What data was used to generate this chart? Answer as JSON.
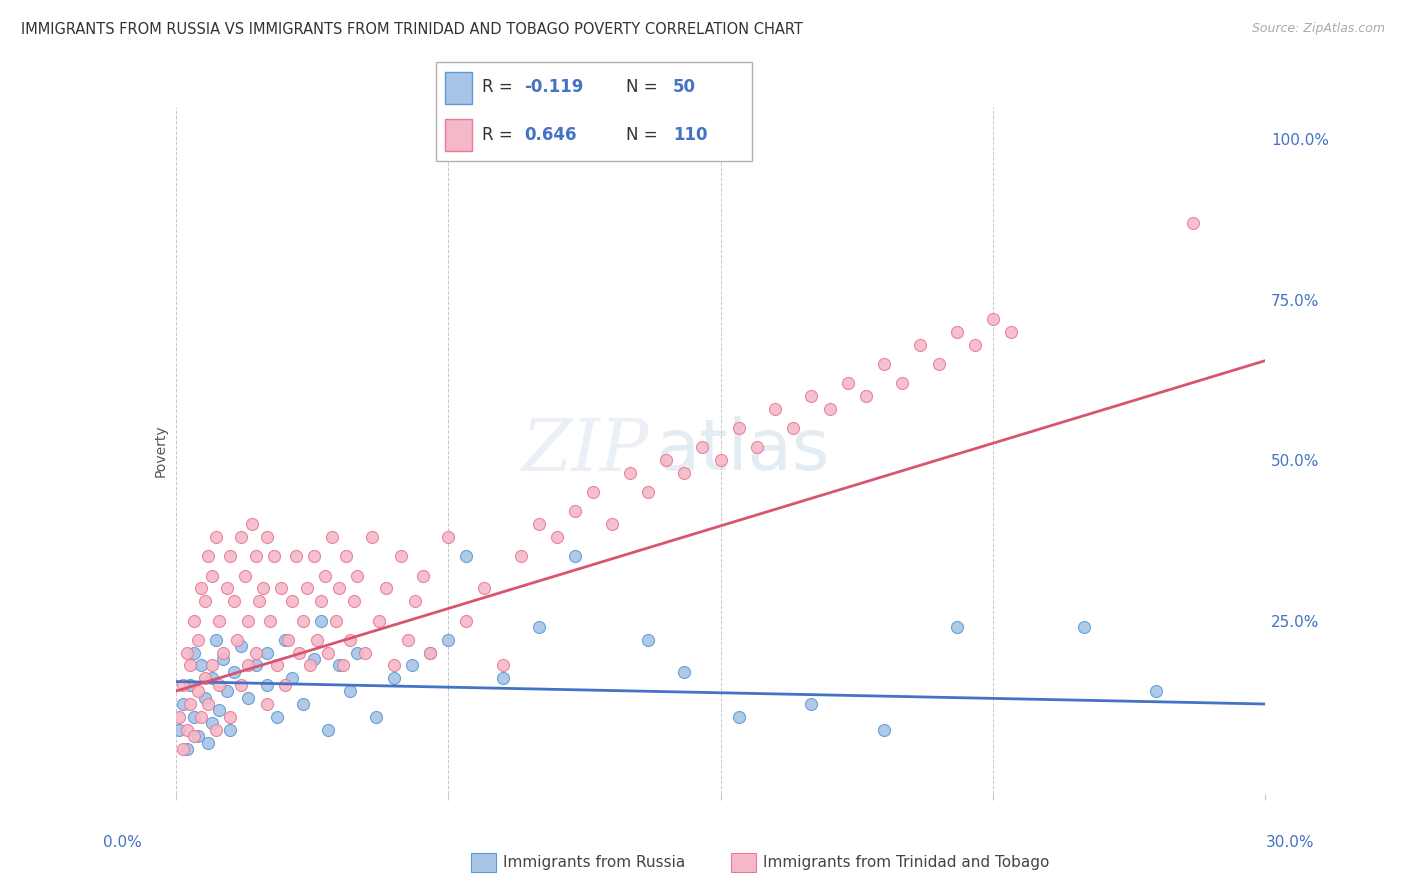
{
  "title": "IMMIGRANTS FROM RUSSIA VS IMMIGRANTS FROM TRINIDAD AND TOBAGO POVERTY CORRELATION CHART",
  "source": "Source: ZipAtlas.com",
  "ylabel": "Poverty",
  "ytick_labels": [
    "100.0%",
    "75.0%",
    "50.0%",
    "25.0%"
  ],
  "ytick_values": [
    1.0,
    0.75,
    0.5,
    0.25
  ],
  "legend_label1": "Immigrants from Russia",
  "legend_label2": "Immigrants from Trinidad and Tobago",
  "color_russia_fill": "#a8c4e6",
  "color_russia_edge": "#5b9bd5",
  "color_tt_fill": "#f4b8c8",
  "color_tt_edge": "#e87a96",
  "color_russia_line": "#4472c4",
  "color_tt_line": "#d9546e",
  "xmin": 0.0,
  "xmax": 0.3,
  "ymin": -0.02,
  "ymax": 1.05
}
